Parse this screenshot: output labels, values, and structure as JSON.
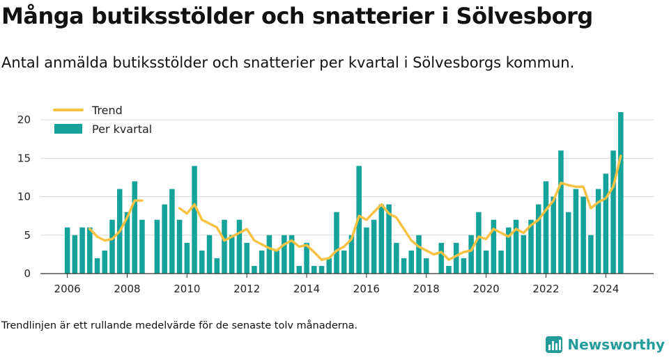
{
  "header": {
    "title": "Många butiksstölder och snatterier i Sölvesborg",
    "subtitle": "Antal anmälda butiksstölder och snatterier per kvartal i Sölvesborgs kommun."
  },
  "footnote": "Trendlinjen är ett rullande medelvärde för de senaste tolv månaderna.",
  "brand": {
    "name": "Newsworthy",
    "icon": "newsworthy-logo-icon"
  },
  "colors": {
    "bar": "#15a29a",
    "trend": "#f7c244",
    "grid": "#d9d9d9",
    "axis": "#333333",
    "brand": "#239b9a"
  },
  "chart_data": {
    "type": "bar",
    "title": "Många butiksstölder och snatterier i Sölvesborg",
    "legend": {
      "position": "top-left",
      "entries": [
        "Trend",
        "Per kvartal"
      ]
    },
    "grid": true,
    "xlim": [
      2005.1,
      2025.6
    ],
    "ylim": [
      0,
      22
    ],
    "x_ticks": [
      2006,
      2008,
      2010,
      2012,
      2014,
      2016,
      2018,
      2020,
      2022,
      2024
    ],
    "y_ticks": [
      0,
      5,
      10,
      15,
      20
    ],
    "series": [
      {
        "name": "Per kvartal",
        "type": "bar",
        "x": [
          2006.0,
          2006.25,
          2006.5,
          2006.75,
          2007.0,
          2007.25,
          2007.5,
          2007.75,
          2008.0,
          2008.25,
          2008.5,
          2009.0,
          2009.25,
          2009.5,
          2009.75,
          2010.0,
          2010.25,
          2010.5,
          2010.75,
          2011.0,
          2011.25,
          2011.5,
          2011.75,
          2012.0,
          2012.25,
          2012.5,
          2012.75,
          2013.0,
          2013.25,
          2013.5,
          2013.75,
          2014.0,
          2014.25,
          2014.5,
          2014.75,
          2015.0,
          2015.25,
          2015.5,
          2015.75,
          2016.0,
          2016.25,
          2016.5,
          2016.75,
          2017.0,
          2017.25,
          2017.5,
          2017.75,
          2018.0,
          2018.25,
          2018.5,
          2018.75,
          2019.0,
          2019.25,
          2019.5,
          2019.75,
          2020.0,
          2020.25,
          2020.5,
          2020.75,
          2021.0,
          2021.25,
          2021.5,
          2021.75,
          2022.0,
          2022.25,
          2022.5,
          2022.75,
          2023.0,
          2023.25,
          2023.5,
          2023.75,
          2024.0,
          2024.25,
          2024.5
        ],
        "values": [
          6,
          5,
          6,
          6,
          2,
          3,
          7,
          11,
          8,
          12,
          7,
          7,
          9,
          11,
          7,
          4,
          14,
          3,
          5,
          2,
          7,
          5,
          7,
          4,
          1,
          3,
          5,
          3,
          5,
          5,
          1,
          4,
          1,
          1,
          2,
          8,
          3,
          5,
          14,
          6,
          7,
          9,
          9,
          4,
          2,
          3,
          5,
          2,
          0,
          4,
          1,
          4,
          2,
          5,
          8,
          3,
          7,
          3,
          6,
          7,
          5,
          7,
          9,
          12,
          10,
          16,
          8,
          11,
          10,
          5,
          11,
          13,
          16,
          21
        ]
      },
      {
        "name": "Trend",
        "type": "line",
        "segments": [
          {
            "x": [
              2006.75,
              2007.0,
              2007.25,
              2007.5,
              2007.75,
              2008.0,
              2008.25,
              2008.5
            ],
            "y": [
              5.8,
              4.8,
              4.3,
              4.5,
              5.5,
              7.3,
              9.5,
              9.5
            ]
          },
          {
            "x": [
              2009.75,
              2010.0,
              2010.25,
              2010.5,
              2010.75,
              2011.0,
              2011.25,
              2011.5,
              2011.75,
              2012.0,
              2012.25,
              2012.5,
              2012.75,
              2013.0,
              2013.25,
              2013.5,
              2013.75,
              2014.0,
              2014.25,
              2014.5,
              2014.75,
              2015.0,
              2015.25,
              2015.5,
              2015.75,
              2016.0,
              2016.25,
              2016.5,
              2016.75,
              2017.0,
              2017.25,
              2017.5,
              2017.75,
              2018.0,
              2018.25,
              2018.5,
              2018.75,
              2019.0,
              2019.25,
              2019.5,
              2019.75,
              2020.0,
              2020.25,
              2020.5,
              2020.75,
              2021.0,
              2021.25,
              2021.5,
              2021.75,
              2022.0,
              2022.25,
              2022.5,
              2022.75,
              2023.0,
              2023.25,
              2023.5,
              2023.75,
              2024.0,
              2024.25,
              2024.5
            ],
            "y": [
              8.5,
              7.8,
              9.0,
              7.0,
              6.5,
              6.0,
              4.3,
              4.8,
              5.3,
              5.8,
              4.3,
              3.8,
              3.3,
              3.0,
              3.8,
              4.3,
              3.5,
              3.7,
              2.8,
              1.8,
              2.0,
              3.0,
              3.5,
              4.5,
              7.5,
              7.0,
              8.0,
              9.0,
              7.8,
              7.3,
              5.8,
              4.3,
              3.5,
              3.0,
              2.5,
              2.8,
              1.8,
              2.3,
              2.8,
              3.0,
              4.8,
              4.5,
              5.8,
              5.3,
              4.8,
              5.8,
              5.3,
              6.3,
              7.0,
              8.3,
              9.5,
              11.8,
              11.5,
              11.3,
              11.3,
              8.5,
              9.3,
              9.8,
              11.3,
              15.3
            ]
          }
        ]
      }
    ]
  }
}
